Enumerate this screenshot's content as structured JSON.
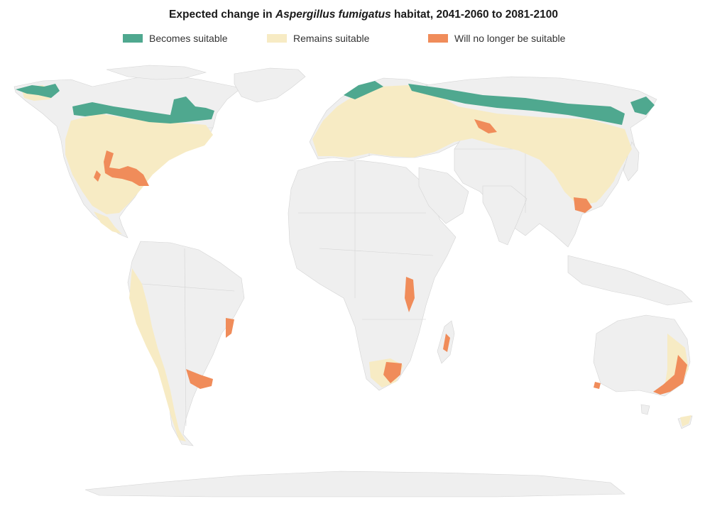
{
  "title": {
    "prefix": "Expected change in ",
    "species": "Aspergillus fumigatus",
    "suffix": " habitat, 2041-2060 to 2081-2100"
  },
  "legend": [
    {
      "label": "Becomes suitable",
      "color": "#4fa88f"
    },
    {
      "label": "Remains suitable",
      "color": "#f7ebc4"
    },
    {
      "label": "Will no longer be suitable",
      "color": "#f08c5a"
    }
  ],
  "colors": {
    "land": "#efefef",
    "border": "#d4d4d4"
  }
}
